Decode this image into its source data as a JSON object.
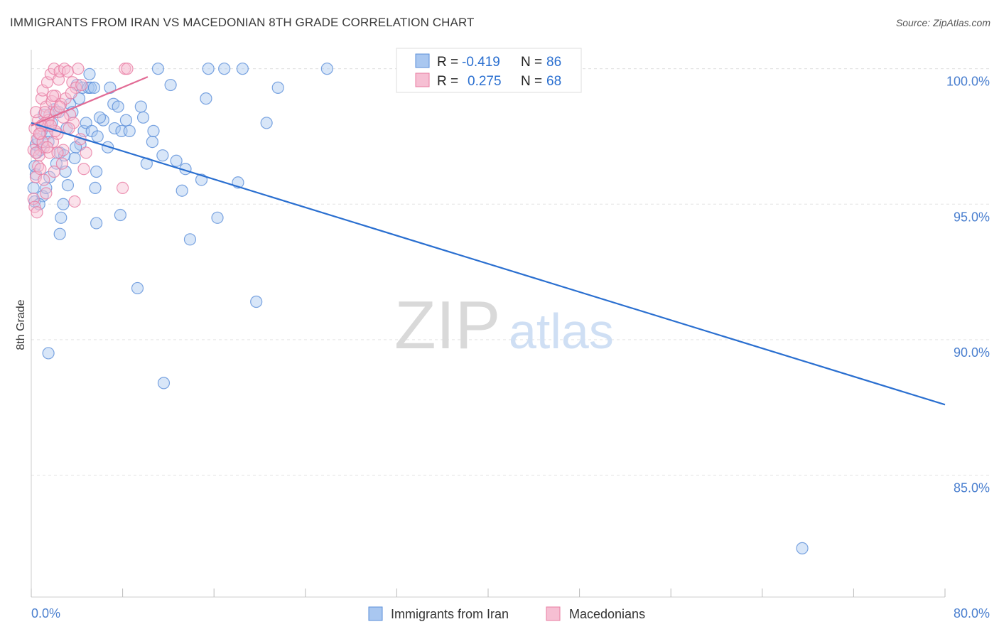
{
  "title": "IMMIGRANTS FROM IRAN VS MACEDONIAN 8TH GRADE CORRELATION CHART",
  "source": "Source: ZipAtlas.com",
  "watermark": {
    "zip": "ZIP",
    "atlas": "atlas"
  },
  "colors": {
    "blue": "#5b8fd9",
    "blue_fill": "#a9c7f0",
    "blue_line": "#2a6fd0",
    "pink": "#e87ca2",
    "pink_fill": "#f6bfd3",
    "pink_line": "#e26b95",
    "axis_text": "#4a7fcf"
  },
  "legend_box": {
    "rows": [
      {
        "r_label": "R =",
        "r_value": "-0.419",
        "n_label": "N =",
        "n_value": "86",
        "series": "blue"
      },
      {
        "r_label": "R =",
        "r_value": "0.275",
        "n_label": "N =",
        "n_value": "68",
        "series": "pink"
      }
    ]
  },
  "bottom_legend": [
    {
      "label": "Immigrants from Iran",
      "series": "blue"
    },
    {
      "label": "Macedonians",
      "series": "pink"
    }
  ],
  "chart_data": {
    "type": "scatter",
    "title": "IMMIGRANTS FROM IRAN VS MACEDONIAN 8TH GRADE CORRELATION CHART",
    "xlabel": "",
    "ylabel": "8th Grade",
    "xlim": [
      0,
      80
    ],
    "ylim": [
      80.5,
      100.7
    ],
    "x_tick_labels": [
      {
        "value": 0,
        "label": "0.0%"
      },
      {
        "value": 80,
        "label": "80.0%"
      }
    ],
    "x_minor_ticks": [
      0,
      8,
      16,
      24,
      32,
      40,
      48,
      56,
      64,
      72,
      80
    ],
    "y_ticks": [
      {
        "value": 85,
        "label": "85.0%"
      },
      {
        "value": 90,
        "label": "90.0%"
      },
      {
        "value": 95,
        "label": "95.0%"
      },
      {
        "value": 100,
        "label": "100.0%"
      }
    ],
    "grid": true,
    "series": [
      {
        "name": "Immigrants from Iran",
        "color": "blue",
        "r": -0.419,
        "n": 86,
        "trend": {
          "x0": 0.0,
          "y0": 98.0,
          "x1": 80.0,
          "y1": 87.6
        },
        "points": [
          [
            0.3,
            95.1
          ],
          [
            0.2,
            95.6
          ],
          [
            0.4,
            96.1
          ],
          [
            0.3,
            96.4
          ],
          [
            0.5,
            96.9
          ],
          [
            0.4,
            97.2
          ],
          [
            0.6,
            97.4
          ],
          [
            0.8,
            97.0
          ],
          [
            1.0,
            95.3
          ],
          [
            0.9,
            97.7
          ],
          [
            1.2,
            97.9
          ],
          [
            1.4,
            97.6
          ],
          [
            1.1,
            98.3
          ],
          [
            1.5,
            97.3
          ],
          [
            1.3,
            95.6
          ],
          [
            1.8,
            98.0
          ],
          [
            2.0,
            98.5
          ],
          [
            2.2,
            96.5
          ],
          [
            2.5,
            96.9
          ],
          [
            2.4,
            98.4
          ],
          [
            2.6,
            94.5
          ],
          [
            2.5,
            93.9
          ],
          [
            2.8,
            95.0
          ],
          [
            3.0,
            96.2
          ],
          [
            3.1,
            97.8
          ],
          [
            3.2,
            95.7
          ],
          [
            3.4,
            98.7
          ],
          [
            3.6,
            98.4
          ],
          [
            3.8,
            96.7
          ],
          [
            4.0,
            99.4
          ],
          [
            4.2,
            98.9
          ],
          [
            4.3,
            97.2
          ],
          [
            4.5,
            99.3
          ],
          [
            4.6,
            97.7
          ],
          [
            4.8,
            98.0
          ],
          [
            5.0,
            99.3
          ],
          [
            5.1,
            99.8
          ],
          [
            5.2,
            99.3
          ],
          [
            5.3,
            97.7
          ],
          [
            5.5,
            99.3
          ],
          [
            5.6,
            95.6
          ],
          [
            5.7,
            96.2
          ],
          [
            5.8,
            97.5
          ],
          [
            5.7,
            94.3
          ],
          [
            6.3,
            98.1
          ],
          [
            6.7,
            97.1
          ],
          [
            6.9,
            99.3
          ],
          [
            7.2,
            98.7
          ],
          [
            7.3,
            97.8
          ],
          [
            7.6,
            98.6
          ],
          [
            7.8,
            94.6
          ],
          [
            7.9,
            97.7
          ],
          [
            8.3,
            98.1
          ],
          [
            8.6,
            97.7
          ],
          [
            9.3,
            91.9
          ],
          [
            9.6,
            98.6
          ],
          [
            9.8,
            98.2
          ],
          [
            10.1,
            96.5
          ],
          [
            10.6,
            97.3
          ],
          [
            10.7,
            97.7
          ],
          [
            11.1,
            100.0
          ],
          [
            11.5,
            96.8
          ],
          [
            11.6,
            88.4
          ],
          [
            12.2,
            99.4
          ],
          [
            12.7,
            96.6
          ],
          [
            13.5,
            96.3
          ],
          [
            13.2,
            95.5
          ],
          [
            13.9,
            93.7
          ],
          [
            14.9,
            95.9
          ],
          [
            15.3,
            98.9
          ],
          [
            15.5,
            100.0
          ],
          [
            16.3,
            94.5
          ],
          [
            16.9,
            100.0
          ],
          [
            18.1,
            95.8
          ],
          [
            18.5,
            100.0
          ],
          [
            19.7,
            91.4
          ],
          [
            20.6,
            98.0
          ],
          [
            21.6,
            99.3
          ],
          [
            25.9,
            100.0
          ],
          [
            1.5,
            89.5
          ],
          [
            67.5,
            82.3
          ],
          [
            0.7,
            95.0
          ],
          [
            1.6,
            96.0
          ],
          [
            3.9,
            97.1
          ],
          [
            2.9,
            96.8
          ],
          [
            6.0,
            98.2
          ]
        ]
      },
      {
        "name": "Macedonians",
        "color": "pink",
        "r": 0.275,
        "n": 68,
        "trend": {
          "x0": 0.0,
          "y0": 97.9,
          "x1": 10.2,
          "y1": 99.7
        },
        "points": [
          [
            0.2,
            95.2
          ],
          [
            0.3,
            94.9
          ],
          [
            0.4,
            96.0
          ],
          [
            0.2,
            97.0
          ],
          [
            0.5,
            97.4
          ],
          [
            0.3,
            97.8
          ],
          [
            0.6,
            98.1
          ],
          [
            0.4,
            98.4
          ],
          [
            0.7,
            96.8
          ],
          [
            0.8,
            97.6
          ],
          [
            0.9,
            98.9
          ],
          [
            1.0,
            99.2
          ],
          [
            0.6,
            96.4
          ],
          [
            1.1,
            97.1
          ],
          [
            1.2,
            98.0
          ],
          [
            1.3,
            98.6
          ],
          [
            1.4,
            99.5
          ],
          [
            1.5,
            97.9
          ],
          [
            1.6,
            98.3
          ],
          [
            1.7,
            99.8
          ],
          [
            1.8,
            98.8
          ],
          [
            1.9,
            97.3
          ],
          [
            2.0,
            100.0
          ],
          [
            2.1,
            99.0
          ],
          [
            2.2,
            98.4
          ],
          [
            2.3,
            97.6
          ],
          [
            2.4,
            99.6
          ],
          [
            2.5,
            99.9
          ],
          [
            2.6,
            98.7
          ],
          [
            2.7,
            96.5
          ],
          [
            2.8,
            97.0
          ],
          [
            2.9,
            100.0
          ],
          [
            3.0,
            98.9
          ],
          [
            3.2,
            99.9
          ],
          [
            3.4,
            98.3
          ],
          [
            3.6,
            99.5
          ],
          [
            3.7,
            98.0
          ],
          [
            3.9,
            99.3
          ],
          [
            4.1,
            100.0
          ],
          [
            4.3,
            97.4
          ],
          [
            4.6,
            96.3
          ],
          [
            4.8,
            96.9
          ],
          [
            8.2,
            100.0
          ],
          [
            8.0,
            95.6
          ],
          [
            8.4,
            100.0
          ],
          [
            3.8,
            95.1
          ],
          [
            1.3,
            95.4
          ],
          [
            0.8,
            96.3
          ],
          [
            0.5,
            94.7
          ],
          [
            1.0,
            97.3
          ],
          [
            1.5,
            98.1
          ],
          [
            2.1,
            97.7
          ],
          [
            2.5,
            98.6
          ],
          [
            1.9,
            99.0
          ],
          [
            1.2,
            98.4
          ],
          [
            0.9,
            97.9
          ],
          [
            0.7,
            97.6
          ],
          [
            1.6,
            96.9
          ],
          [
            2.3,
            96.9
          ],
          [
            3.3,
            97.8
          ],
          [
            4.4,
            99.4
          ],
          [
            0.4,
            96.9
          ],
          [
            1.4,
            97.1
          ],
          [
            2.0,
            96.2
          ],
          [
            1.1,
            95.9
          ],
          [
            2.8,
            98.2
          ],
          [
            3.5,
            99.1
          ],
          [
            1.7,
            97.9
          ]
        ]
      }
    ]
  }
}
